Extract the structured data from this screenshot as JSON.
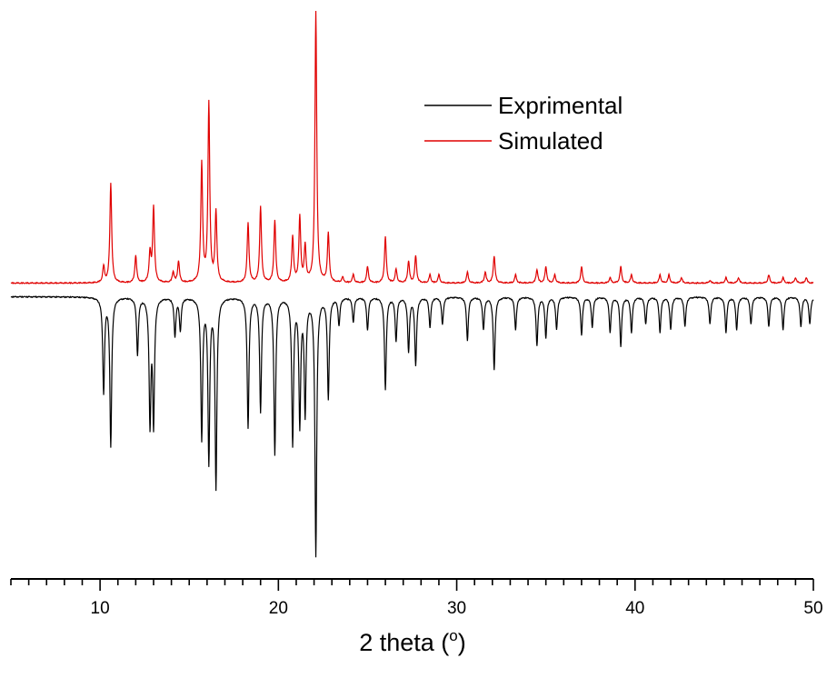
{
  "chart_data": {
    "type": "line",
    "title": "",
    "xlabel": "2 theta (",
    "xlabel_superscript": "o",
    "xlabel_suffix": ")",
    "ylabel": "",
    "xlim": [
      5,
      50
    ],
    "x_ticks": [
      10,
      20,
      30,
      40,
      50
    ],
    "y_axis_shown": false,
    "grid": false,
    "legend_position": "top-right",
    "series": [
      {
        "name": "Exprimental",
        "color": "#000000",
        "orientation": "downward",
        "baseline_offset": -0.3,
        "peaks": [
          [
            10.2,
            3.5
          ],
          [
            10.6,
            5.5
          ],
          [
            12.1,
            2.1
          ],
          [
            12.8,
            4.6
          ],
          [
            13.0,
            4.6
          ],
          [
            14.2,
            1.4
          ],
          [
            14.5,
            1.2
          ],
          [
            15.7,
            5.2
          ],
          [
            16.1,
            6.0
          ],
          [
            16.5,
            7.0
          ],
          [
            18.3,
            4.8
          ],
          [
            19.0,
            4.2
          ],
          [
            19.8,
            5.8
          ],
          [
            20.8,
            5.4
          ],
          [
            21.2,
            4.6
          ],
          [
            21.5,
            4.2
          ],
          [
            22.1,
            9.5
          ],
          [
            22.8,
            3.7
          ],
          [
            23.4,
            1.0
          ],
          [
            24.2,
            0.9
          ],
          [
            25.0,
            1.2
          ],
          [
            26.0,
            3.4
          ],
          [
            26.6,
            1.6
          ],
          [
            27.3,
            2.0
          ],
          [
            27.7,
            2.5
          ],
          [
            28.5,
            1.1
          ],
          [
            29.2,
            1.0
          ],
          [
            30.6,
            1.6
          ],
          [
            31.5,
            1.2
          ],
          [
            32.1,
            2.7
          ],
          [
            33.3,
            1.2
          ],
          [
            34.5,
            1.8
          ],
          [
            35.0,
            1.5
          ],
          [
            35.6,
            1.2
          ],
          [
            37.0,
            1.4
          ],
          [
            37.6,
            1.1
          ],
          [
            38.6,
            1.3
          ],
          [
            39.2,
            1.8
          ],
          [
            39.8,
            1.3
          ],
          [
            40.6,
            1.0
          ],
          [
            41.4,
            1.3
          ],
          [
            42.0,
            1.2
          ],
          [
            42.8,
            1.1
          ],
          [
            44.2,
            1.0
          ],
          [
            45.1,
            1.3
          ],
          [
            45.7,
            1.2
          ],
          [
            46.5,
            1.0
          ],
          [
            47.5,
            1.1
          ],
          [
            48.3,
            1.2
          ],
          [
            49.3,
            1.1
          ],
          [
            49.8,
            1.0
          ]
        ]
      },
      {
        "name": "Simulated",
        "color": "#e00000",
        "orientation": "upward",
        "baseline_offset": 0,
        "peaks": [
          [
            10.2,
            0.6
          ],
          [
            10.6,
            3.7
          ],
          [
            12.0,
            1.0
          ],
          [
            12.8,
            1.1
          ],
          [
            13.0,
            2.8
          ],
          [
            14.1,
            0.4
          ],
          [
            14.4,
            0.8
          ],
          [
            15.7,
            4.4
          ],
          [
            16.1,
            6.6
          ],
          [
            16.5,
            2.6
          ],
          [
            18.3,
            2.2
          ],
          [
            19.0,
            2.8
          ],
          [
            19.8,
            2.3
          ],
          [
            20.8,
            1.7
          ],
          [
            21.2,
            2.4
          ],
          [
            21.5,
            1.3
          ],
          [
            22.1,
            10.0
          ],
          [
            22.8,
            1.8
          ],
          [
            23.6,
            0.2
          ],
          [
            24.2,
            0.3
          ],
          [
            25.0,
            0.6
          ],
          [
            26.0,
            1.7
          ],
          [
            26.6,
            0.5
          ],
          [
            27.3,
            0.8
          ],
          [
            27.7,
            1.0
          ],
          [
            28.5,
            0.3
          ],
          [
            29.0,
            0.3
          ],
          [
            30.6,
            0.4
          ],
          [
            31.6,
            0.4
          ],
          [
            32.1,
            1.0
          ],
          [
            33.3,
            0.3
          ],
          [
            34.5,
            0.5
          ],
          [
            35.0,
            0.6
          ],
          [
            35.5,
            0.3
          ],
          [
            37.0,
            0.6
          ],
          [
            38.6,
            0.2
          ],
          [
            39.2,
            0.6
          ],
          [
            39.8,
            0.3
          ],
          [
            41.4,
            0.3
          ],
          [
            41.9,
            0.3
          ],
          [
            42.6,
            0.2
          ],
          [
            44.2,
            0.1
          ],
          [
            45.1,
            0.2
          ],
          [
            45.8,
            0.2
          ],
          [
            47.5,
            0.3
          ],
          [
            48.3,
            0.2
          ],
          [
            49.0,
            0.2
          ],
          [
            49.6,
            0.2
          ]
        ]
      }
    ]
  }
}
